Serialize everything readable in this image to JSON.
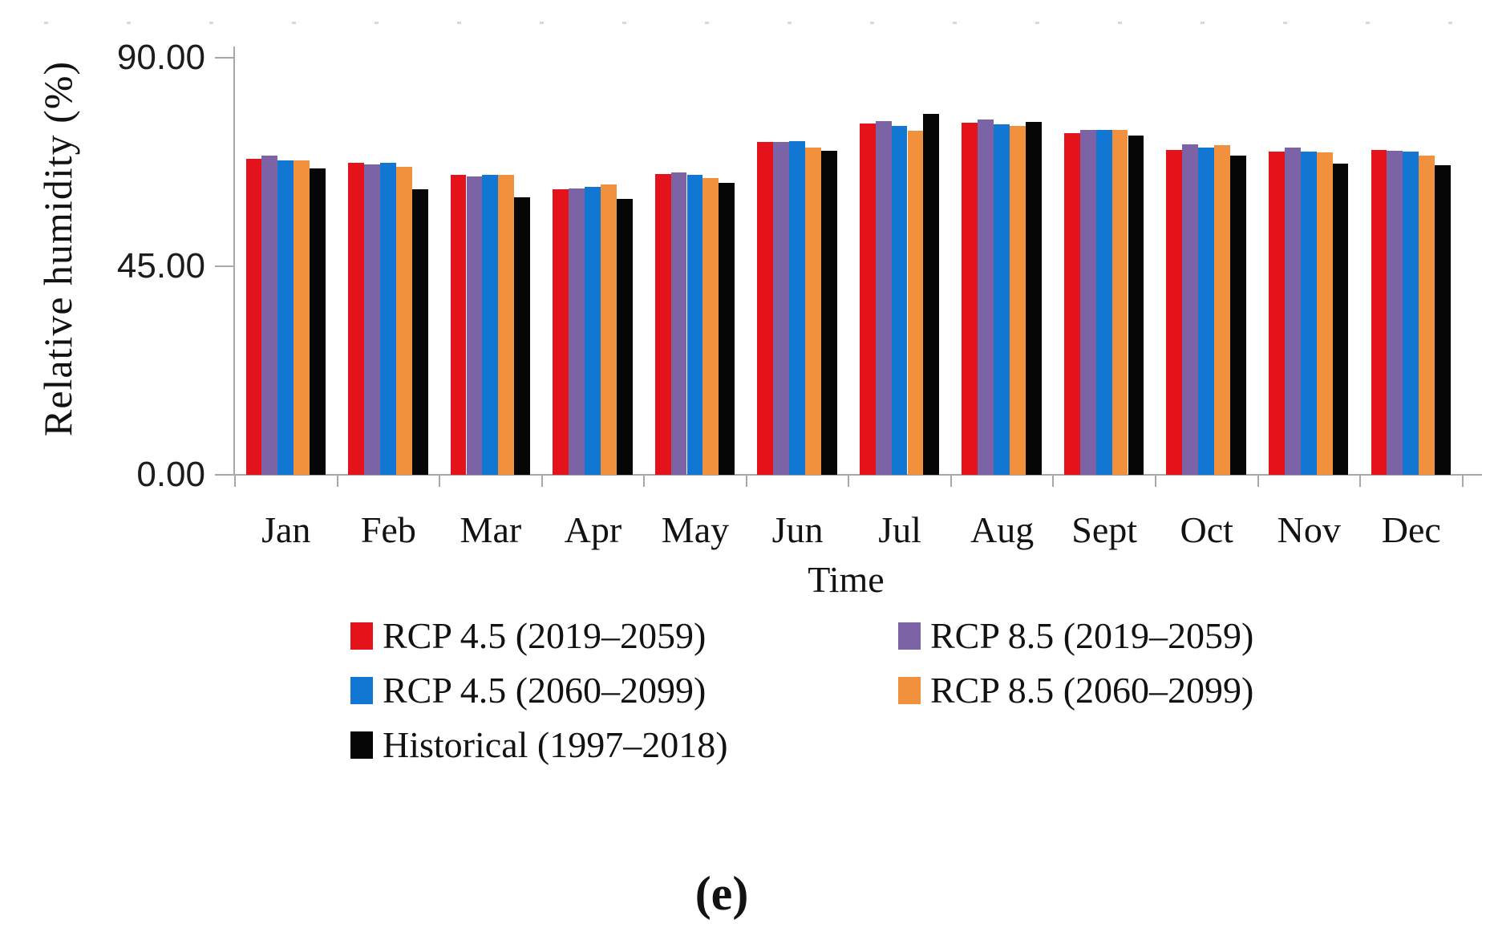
{
  "caption": "(e)",
  "axis_color": "#a8a8a8",
  "chart_data": {
    "type": "bar",
    "title": "",
    "xlabel": "Time",
    "ylabel": "Relative humidity (%)",
    "ylim": [
      0,
      90
    ],
    "yticks": [
      0,
      45,
      90
    ],
    "ytick_labels": [
      "0.00",
      "45.00",
      "90.00"
    ],
    "grid": false,
    "legend_position": "bottom",
    "categories": [
      "Jan",
      "Feb",
      "Mar",
      "Apr",
      "May",
      "Jun",
      "Jul",
      "Aug",
      "Sept",
      "Oct",
      "Nov",
      "Dec"
    ],
    "series": [
      {
        "name": "RCP 4.5 (2019–2059)",
        "color": "#e4131b",
        "values": [
          68.2,
          67.3,
          64.7,
          61.6,
          64.9,
          71.8,
          75.8,
          76.0,
          73.7,
          70.1,
          69.7,
          70.1
        ]
      },
      {
        "name": "RCP 8.5 (2019–2059)",
        "color": "#7c63a5",
        "values": [
          68.9,
          67.0,
          64.4,
          61.8,
          65.2,
          71.8,
          76.3,
          76.6,
          74.4,
          71.3,
          70.6,
          69.9
        ]
      },
      {
        "name": "RCP 4.5 (2060–2099)",
        "color": "#1277d3",
        "values": [
          67.8,
          67.3,
          64.7,
          62.1,
          64.7,
          72.0,
          75.3,
          75.6,
          74.4,
          70.6,
          69.7,
          69.7
        ]
      },
      {
        "name": "RCP 8.5 (2060–2099)",
        "color": "#f2913d",
        "values": [
          67.8,
          66.4,
          64.7,
          62.6,
          64.0,
          70.6,
          74.2,
          75.3,
          74.4,
          71.1,
          69.6,
          68.9
        ]
      },
      {
        "name": "Historical (1997–2018)",
        "color": "#060606",
        "values": [
          66.1,
          61.6,
          59.9,
          59.5,
          63.0,
          69.9,
          77.9,
          76.1,
          73.2,
          68.9,
          67.1,
          66.8
        ]
      }
    ],
    "legend_layout": [
      {
        "series": 0,
        "col": 0,
        "row": 0
      },
      {
        "series": 1,
        "col": 1,
        "row": 0
      },
      {
        "series": 2,
        "col": 0,
        "row": 1
      },
      {
        "series": 3,
        "col": 1,
        "row": 1
      },
      {
        "series": 4,
        "col": 0,
        "row": 2
      }
    ]
  }
}
